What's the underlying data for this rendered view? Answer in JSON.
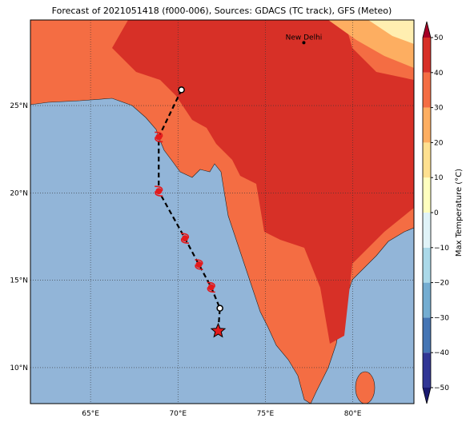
{
  "title": "Forecast of 2021051418 (f000-006), Sources: GDACS (TC track), GFS (Meteo)",
  "map": {
    "xlim": [
      61.56,
      83.5
    ],
    "ylim": [
      7.94,
      29.9
    ],
    "xticks": [
      {
        "value": 65,
        "label": "65°E"
      },
      {
        "value": 70,
        "label": "70°E"
      },
      {
        "value": 75,
        "label": "75°E"
      },
      {
        "value": 80,
        "label": "80°E"
      }
    ],
    "yticks": [
      {
        "value": 10,
        "label": "10°N"
      },
      {
        "value": 15,
        "label": "15°N"
      },
      {
        "value": 20,
        "label": "20°N"
      },
      {
        "value": 25,
        "label": "25°N"
      }
    ],
    "grid": true
  },
  "places": [
    {
      "name": "New Delhi",
      "lon": 77.2,
      "lat": 28.6
    }
  ],
  "track": {
    "lon": [
      70.2,
      68.9,
      68.9,
      70.4,
      71.2,
      71.9,
      72.4,
      72.3
    ],
    "lat": [
      25.9,
      23.2,
      20.1,
      17.4,
      15.9,
      14.6,
      13.4,
      12.1
    ]
  },
  "colorbar": {
    "label": "Max Temperature (°C)",
    "lim": [
      -50,
      50
    ],
    "ticks": [
      {
        "value": -50,
        "label": "−50"
      },
      {
        "value": -40,
        "label": "−40"
      },
      {
        "value": -30,
        "label": "−30"
      },
      {
        "value": -20,
        "label": "−20"
      },
      {
        "value": -10,
        "label": "−10"
      },
      0,
      10,
      20,
      30,
      40,
      50
    ],
    "colors": [
      "#313695",
      "#4575b4",
      "#74add1",
      "#abd9e9",
      "#e0f3f8",
      "#ffffbf",
      "#fee090",
      "#fdae61",
      "#f46d43",
      "#d73027"
    ],
    "under": "#1a1a70",
    "over": "#a50026"
  }
}
